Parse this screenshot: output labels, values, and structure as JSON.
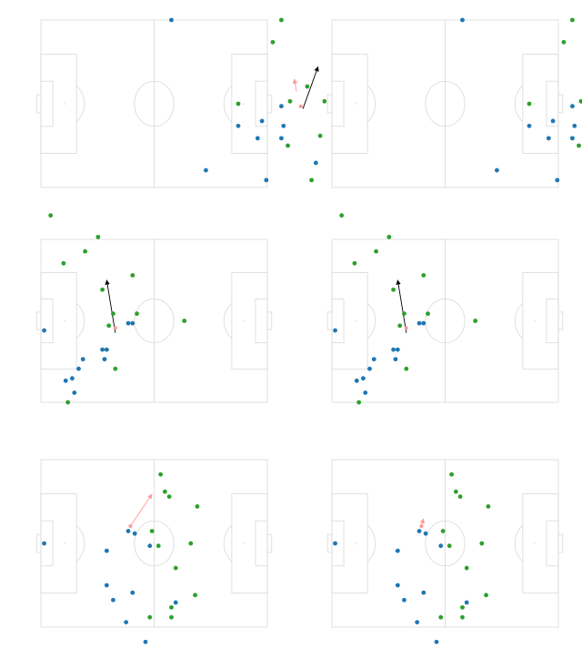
{
  "colors": {
    "pitch_line": "#d9d9d9",
    "team_blue": "#1f77b4",
    "team_green": "#2ca02c",
    "ball": "#ff9896",
    "arrow_black": "#000000",
    "arrow_pink": "#ff9896"
  },
  "chart_data": [
    {
      "type": "scatter",
      "panel": "row1-left",
      "blue": [
        [
          24,
          -27
        ],
        [
          50,
          -7
        ],
        [
          8,
          34
        ],
        [
          23,
          49
        ],
        [
          39,
          -9
        ],
        [
          48,
          -14
        ],
        [
          59,
          -1
        ],
        [
          60,
          -9
        ],
        [
          59,
          -14
        ],
        [
          52,
          -31
        ],
        [
          75,
          -24
        ]
      ],
      "green": [
        [
          33,
          62
        ],
        [
          39,
          0
        ],
        [
          55,
          25
        ],
        [
          59,
          34
        ],
        [
          71,
          7
        ],
        [
          79,
          1
        ],
        [
          73,
          -31
        ],
        [
          63,
          1
        ],
        [
          62,
          -17
        ],
        [
          77,
          -13
        ]
      ],
      "ball": [
        68,
        -1
      ],
      "arrows": [
        {
          "from": [
            69,
            -2
          ],
          "to": [
            76,
            15
          ],
          "color": "black"
        },
        {
          "from": [
            66,
            5
          ],
          "to": [
            65,
            10
          ],
          "color": "pink"
        }
      ]
    },
    {
      "type": "scatter",
      "panel": "row1-right",
      "blue": [
        [
          24,
          -27
        ],
        [
          50,
          -7
        ],
        [
          8,
          34
        ],
        [
          23,
          49
        ],
        [
          39,
          -9
        ],
        [
          48,
          -14
        ],
        [
          59,
          -1
        ],
        [
          60,
          -9
        ],
        [
          59,
          -14
        ],
        [
          52,
          -31
        ],
        [
          75,
          -24
        ]
      ],
      "green": [
        [
          33,
          62
        ],
        [
          39,
          0
        ],
        [
          55,
          25
        ],
        [
          59,
          34
        ],
        [
          71,
          7
        ],
        [
          79,
          1
        ],
        [
          73,
          -31
        ],
        [
          63,
          1
        ],
        [
          62,
          -17
        ],
        [
          77,
          -13
        ]
      ],
      "ball": [
        68,
        -1
      ],
      "arrows": [
        {
          "from": [
            69,
            -2
          ],
          "to": [
            76,
            15
          ],
          "color": "black"
        },
        {
          "from": [
            66,
            -5
          ],
          "to": [
            65,
            -6
          ],
          "color": "pink"
        }
      ]
    },
    {
      "type": "scatter",
      "panel": "row2-left",
      "blue": [
        [
          -41,
          -25
        ],
        [
          -38,
          -24
        ],
        [
          -22,
          -12
        ],
        [
          -35,
          -20
        ],
        [
          -23,
          -16
        ],
        [
          -37,
          -30
        ],
        [
          -33,
          -16
        ],
        [
          -24,
          -12
        ],
        [
          -12,
          -1
        ],
        [
          -51,
          -4
        ],
        [
          -10,
          -1
        ]
      ],
      "green": [
        [
          -48,
          44
        ],
        [
          -42,
          24
        ],
        [
          -32,
          29
        ],
        [
          -26,
          35
        ],
        [
          -10,
          19
        ],
        [
          -24,
          13
        ],
        [
          -21,
          -2
        ],
        [
          -19,
          3
        ],
        [
          -8,
          3
        ],
        [
          -18,
          -20
        ],
        [
          -40,
          -34
        ],
        [
          14,
          0
        ]
      ],
      "ball": [
        -18,
        -3
      ],
      "arrows": [
        {
          "from": [
            -18,
            -5
          ],
          "to": [
            -22,
            17
          ],
          "color": "black"
        }
      ]
    },
    {
      "type": "scatter",
      "panel": "row2-right",
      "blue": [
        [
          -41,
          -25
        ],
        [
          -38,
          -24
        ],
        [
          -22,
          -12
        ],
        [
          -35,
          -20
        ],
        [
          -23,
          -16
        ],
        [
          -37,
          -30
        ],
        [
          -33,
          -16
        ],
        [
          -24,
          -12
        ],
        [
          -12,
          -1
        ],
        [
          -51,
          -4
        ],
        [
          -10,
          -1
        ]
      ],
      "green": [
        [
          -48,
          44
        ],
        [
          -42,
          24
        ],
        [
          -32,
          29
        ],
        [
          -26,
          35
        ],
        [
          -10,
          19
        ],
        [
          -24,
          13
        ],
        [
          -21,
          -2
        ],
        [
          -19,
          3
        ],
        [
          -8,
          3
        ],
        [
          -18,
          -20
        ],
        [
          -40,
          -34
        ],
        [
          14,
          0
        ]
      ],
      "ball": [
        -18,
        -3
      ],
      "arrows": [
        {
          "from": [
            -18,
            -5
          ],
          "to": [
            -22,
            17
          ],
          "color": "black"
        }
      ]
    },
    {
      "type": "scatter",
      "panel": "row3-left",
      "blue": [
        [
          -51,
          0
        ],
        [
          -12,
          5
        ],
        [
          -13,
          -32
        ],
        [
          -22,
          -17
        ],
        [
          -22,
          -3
        ],
        [
          -19,
          -23
        ],
        [
          -9,
          4
        ],
        [
          -10,
          -20
        ],
        [
          -2,
          -1
        ],
        [
          6,
          -48
        ],
        [
          10,
          -24
        ],
        [
          -4,
          -40
        ]
      ],
      "green": [
        [
          3,
          28
        ],
        [
          5,
          21
        ],
        [
          8,
          -30
        ],
        [
          10,
          -10
        ],
        [
          17,
          0
        ],
        [
          2,
          -1
        ],
        [
          8,
          -26
        ],
        [
          -2,
          -30
        ],
        [
          7,
          19
        ],
        [
          -1,
          5
        ],
        [
          19,
          -21
        ],
        [
          20,
          15
        ]
      ],
      "ball": [
        -11,
        7
      ],
      "arrows": [
        {
          "from": [
            -11,
            7
          ],
          "to": [
            -1,
            20
          ],
          "color": "pink"
        }
      ]
    },
    {
      "type": "scatter",
      "panel": "row3-right",
      "blue": [
        [
          -51,
          0
        ],
        [
          -12,
          5
        ],
        [
          -13,
          -32
        ],
        [
          -22,
          -17
        ],
        [
          -22,
          -3
        ],
        [
          -19,
          -23
        ],
        [
          -9,
          4
        ],
        [
          -10,
          -20
        ],
        [
          -2,
          -1
        ],
        [
          6,
          -48
        ],
        [
          10,
          -24
        ],
        [
          -4,
          -40
        ]
      ],
      "green": [
        [
          3,
          28
        ],
        [
          5,
          21
        ],
        [
          8,
          -30
        ],
        [
          10,
          -10
        ],
        [
          17,
          0
        ],
        [
          2,
          -1
        ],
        [
          8,
          -26
        ],
        [
          -2,
          -30
        ],
        [
          7,
          19
        ],
        [
          -1,
          5
        ],
        [
          19,
          -21
        ],
        [
          20,
          15
        ]
      ],
      "ball": [
        -11,
        7
      ],
      "arrows": [
        {
          "from": [
            -11,
            7
          ],
          "to": [
            -10,
            10
          ],
          "color": "pink"
        }
      ]
    }
  ]
}
